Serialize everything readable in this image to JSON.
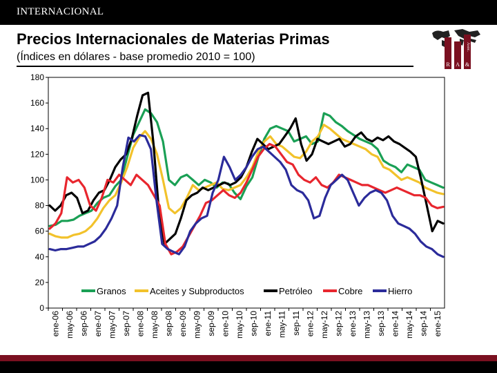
{
  "header": {
    "section": "INTERNACIONAL"
  },
  "logo": {
    "letters": [
      "R",
      "A",
      "&",
      "Asoc."
    ]
  },
  "colors": {
    "granos": "#1aa055",
    "aceites": "#f2c22b",
    "petroleo": "#000000",
    "cobre": "#e8262e",
    "hierro": "#2b2b9a",
    "brand": "#7a1020"
  },
  "chart_data": {
    "type": "line",
    "title": "Precios Internacionales de Materias Primas",
    "subtitle": "(Índices en dólares - base promedio 2010 = 100)",
    "xlabel": "",
    "ylabel": "",
    "ylim": [
      0,
      180
    ],
    "yticks": [
      0,
      20,
      40,
      60,
      80,
      100,
      120,
      140,
      160,
      180
    ],
    "xticks": [
      "ene-06",
      "may-06",
      "sep-06",
      "ene-07",
      "may-07",
      "sep-07",
      "ene-08",
      "may-08",
      "sep-08",
      "ene-09",
      "may-09",
      "sep-09",
      "ene-10",
      "may-10",
      "sep-10",
      "ene-11",
      "may-11",
      "sep-11",
      "ene-12",
      "may-12",
      "sep-12",
      "ene-13",
      "may-13",
      "sep-13",
      "ene-14",
      "may-14",
      "sep-14",
      "ene-15"
    ],
    "grid": false,
    "legend": "bottom",
    "series": [
      {
        "name": "Granos",
        "color": "#1aa055",
        "values": [
          64,
          65,
          68,
          68,
          69,
          72,
          74,
          76,
          82,
          86,
          88,
          95,
          100,
          118,
          135,
          145,
          155,
          152,
          145,
          130,
          100,
          96,
          102,
          104,
          100,
          96,
          100,
          98,
          94,
          98,
          97,
          90,
          85,
          95,
          102,
          118,
          132,
          140,
          142,
          140,
          138,
          130,
          132,
          134,
          128,
          130,
          152,
          150,
          145,
          142,
          138,
          135,
          132,
          130,
          128,
          124,
          115,
          112,
          110,
          106,
          112,
          110,
          108,
          100,
          98,
          96,
          94
        ]
      },
      {
        "name": "Aceites y Subproductos",
        "color": "#f2c22b",
        "values": [
          58,
          56,
          55,
          55,
          57,
          58,
          60,
          64,
          70,
          78,
          84,
          88,
          98,
          110,
          125,
          133,
          138,
          132,
          120,
          100,
          78,
          74,
          78,
          86,
          96,
          92,
          94,
          96,
          98,
          93,
          92,
          94,
          96,
          102,
          110,
          122,
          130,
          134,
          128,
          126,
          122,
          118,
          117,
          122,
          130,
          134,
          143,
          140,
          136,
          132,
          130,
          128,
          126,
          124,
          120,
          118,
          110,
          108,
          104,
          100,
          102,
          100,
          98,
          94,
          92,
          90,
          89
        ]
      },
      {
        "name": "Petróleo",
        "color": "#000000",
        "values": [
          80,
          76,
          80,
          88,
          90,
          86,
          74,
          76,
          84,
          90,
          92,
          100,
          110,
          116,
          120,
          132,
          150,
          166,
          168,
          128,
          75,
          50,
          54,
          58,
          70,
          84,
          88,
          90,
          94,
          92,
          94,
          96,
          98,
          96,
          98,
          102,
          110,
          122,
          132,
          128,
          124,
          126,
          128,
          134,
          140,
          148,
          128,
          115,
          120,
          132,
          130,
          128,
          130,
          132,
          126,
          128,
          134,
          137,
          132,
          130,
          133,
          131,
          134,
          130,
          128,
          125,
          122,
          118,
          100,
          80,
          60,
          68,
          66
        ]
      },
      {
        "name": "Cobre",
        "color": "#e8262e",
        "values": [
          62,
          66,
          74,
          102,
          98,
          100,
          94,
          80,
          76,
          86,
          100,
          98,
          104,
          100,
          96,
          104,
          100,
          96,
          88,
          80,
          50,
          42,
          44,
          48,
          56,
          64,
          72,
          82,
          84,
          88,
          92,
          88,
          86,
          90,
          98,
          108,
          118,
          124,
          128,
          126,
          120,
          114,
          112,
          104,
          100,
          98,
          102,
          96,
          94,
          98,
          104,
          102,
          100,
          98,
          96,
          96,
          94,
          92,
          90,
          92,
          94,
          92,
          90,
          88,
          88,
          86,
          80,
          78,
          79
        ]
      },
      {
        "name": "Hierro",
        "color": "#2b2b9a",
        "values": [
          46,
          45,
          46,
          46,
          47,
          48,
          48,
          50,
          52,
          56,
          62,
          70,
          80,
          110,
          133,
          130,
          135,
          134,
          124,
          84,
          50,
          46,
          44,
          42,
          48,
          60,
          66,
          70,
          72,
          90,
          100,
          118,
          110,
          100,
          104,
          110,
          118,
          124,
          126,
          122,
          118,
          114,
          108,
          96,
          92,
          90,
          84,
          70,
          72,
          86,
          96,
          100,
          104,
          100,
          90,
          80,
          86,
          90,
          92,
          90,
          84,
          72,
          66,
          64,
          62,
          58,
          52,
          48,
          46,
          42,
          40
        ]
      }
    ]
  }
}
